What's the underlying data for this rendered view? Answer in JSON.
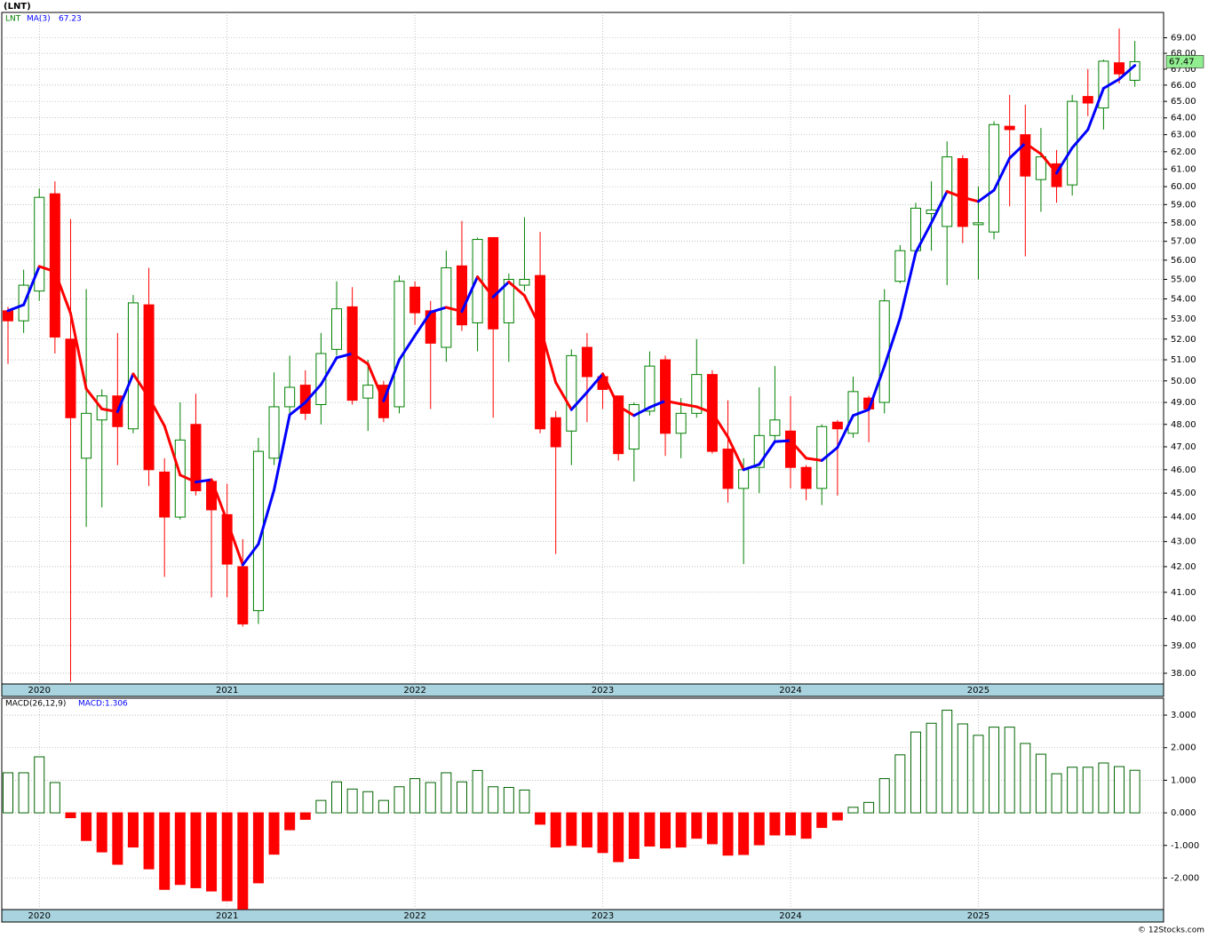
{
  "chart_data": [
    {
      "type": "candlestick",
      "title": "(LNT)",
      "log_scale": true,
      "grid": true,
      "categories": [
        null,
        null,
        "2020",
        null,
        null,
        null,
        null,
        null,
        null,
        null,
        null,
        null,
        null,
        null,
        "2021",
        null,
        null,
        null,
        null,
        null,
        null,
        null,
        null,
        null,
        null,
        null,
        "2022",
        null,
        null,
        null,
        null,
        null,
        null,
        null,
        null,
        null,
        null,
        null,
        "2023",
        null,
        null,
        null,
        null,
        null,
        null,
        null,
        null,
        null,
        null,
        null,
        "2024",
        null,
        null,
        null,
        null,
        null,
        null,
        null,
        null,
        null,
        null,
        null,
        "2025",
        null,
        null,
        null,
        null,
        null,
        null,
        null,
        null,
        null,
        null
      ],
      "series": [
        {
          "name": "LNT",
          "color": "#008000",
          "down_color": "#ff0000",
          "open": [
            53.4,
            52.9,
            54.4,
            59.6,
            52.0,
            46.5,
            48.2,
            49.3,
            47.8,
            53.7,
            45.9,
            44.0,
            48.0,
            45.5,
            44.1,
            42.0,
            40.3,
            46.5,
            48.8,
            49.8,
            48.9,
            51.5,
            53.6,
            49.2,
            49.8,
            48.8,
            54.6,
            53.4,
            51.6,
            55.7,
            52.8,
            57.2,
            52.8,
            54.7,
            55.2,
            48.3,
            47.7,
            51.6,
            50.2,
            49.3,
            46.9,
            48.6,
            51.0,
            47.6,
            48.5,
            50.3,
            46.9,
            45.2,
            46.1,
            47.5,
            47.7,
            46.1,
            45.2,
            48.1,
            47.6,
            49.2,
            49.0,
            54.9,
            56.5,
            58.5,
            57.8,
            61.6,
            57.9,
            57.5,
            63.5,
            63.0,
            60.4,
            61.3,
            60.1,
            65.3,
            64.6,
            67.4,
            66.3
          ],
          "high": [
            53.6,
            55.5,
            59.9,
            60.3,
            58.2,
            54.5,
            49.6,
            52.3,
            54.2,
            55.6,
            46.5,
            49.0,
            49.4,
            45.6,
            45.4,
            43.1,
            47.4,
            50.4,
            51.2,
            50.5,
            52.3,
            54.9,
            54.6,
            51.0,
            50.0,
            55.2,
            54.9,
            53.9,
            56.5,
            58.1,
            57.2,
            57.2,
            55.3,
            58.3,
            57.5,
            48.6,
            51.5,
            52.3,
            50.4,
            49.3,
            49.0,
            51.4,
            51.2,
            49.2,
            52.0,
            50.5,
            49.1,
            46.5,
            49.7,
            50.7,
            49.3,
            46.2,
            48.0,
            48.2,
            50.2,
            49.3,
            54.5,
            56.8,
            59.1,
            60.3,
            62.6,
            61.8,
            60.0,
            63.8,
            65.4,
            64.8,
            63.4,
            62.1,
            65.4,
            67.0,
            67.6,
            69.6,
            68.8
          ],
          "low": [
            50.8,
            52.3,
            53.9,
            51.3,
            37.7,
            43.6,
            44.4,
            46.2,
            47.6,
            45.3,
            41.6,
            43.9,
            44.9,
            40.8,
            40.8,
            39.7,
            39.8,
            46.2,
            48.3,
            48.2,
            48.0,
            51.2,
            48.9,
            47.7,
            48.1,
            48.5,
            52.7,
            48.7,
            50.9,
            52.4,
            51.4,
            48.3,
            50.9,
            54.4,
            47.6,
            42.5,
            46.2,
            48.1,
            48.7,
            46.4,
            45.5,
            48.4,
            46.6,
            46.5,
            48.3,
            46.7,
            44.6,
            42.1,
            45.0,
            47.2,
            45.2,
            44.7,
            44.5,
            44.9,
            47.4,
            47.2,
            48.5,
            54.8,
            56.3,
            56.5,
            54.7,
            56.9,
            55.0,
            57.1,
            58.9,
            56.2,
            58.6,
            59.1,
            59.5,
            64.1,
            63.3,
            66.1,
            65.9
          ],
          "close": [
            52.9,
            54.7,
            59.4,
            52.1,
            48.3,
            48.5,
            49.3,
            47.9,
            53.8,
            46.0,
            44.0,
            47.3,
            45.1,
            44.3,
            42.1,
            39.8,
            46.8,
            48.8,
            49.7,
            48.5,
            51.3,
            53.5,
            49.1,
            49.8,
            48.3,
            54.9,
            53.3,
            51.8,
            55.6,
            52.7,
            57.1,
            52.5,
            55.0,
            55.0,
            47.8,
            47.0,
            51.2,
            50.2,
            49.6,
            46.7,
            48.9,
            50.7,
            47.6,
            48.5,
            50.3,
            46.8,
            45.2,
            46.0,
            47.5,
            48.2,
            46.1,
            45.2,
            47.9,
            47.8,
            49.5,
            48.7,
            53.9,
            56.5,
            58.8,
            58.7,
            61.7,
            57.8,
            58.0,
            63.6,
            63.3,
            60.6,
            61.7,
            60.0,
            65.0,
            64.9,
            67.5,
            66.7,
            67.47
          ]
        },
        {
          "name": "MA(3)",
          "color": "#0000ff",
          "down_color": "#ff0000",
          "values": [
            53.4,
            53.7,
            55.67,
            55.4,
            53.27,
            49.63,
            48.7,
            48.57,
            50.33,
            49.23,
            47.93,
            45.77,
            45.47,
            45.57,
            43.83,
            42.07,
            42.9,
            45.13,
            48.43,
            49,
            49.83,
            51.1,
            51.3,
            50.8,
            49.07,
            51,
            52.17,
            53.33,
            53.57,
            53.37,
            55.13,
            54.1,
            54.87,
            54.17,
            52.6,
            49.93,
            48.67,
            49.47,
            50.33,
            48.83,
            48.4,
            48.77,
            49.07,
            48.93,
            48.8,
            48.53,
            47.43,
            46,
            46.23,
            47.23,
            47.27,
            46.5,
            46.4,
            46.97,
            48.4,
            48.67,
            50.7,
            53.03,
            56.4,
            58,
            59.73,
            59.4,
            59.17,
            59.8,
            61.63,
            62.5,
            61.87,
            60.77,
            62.23,
            63.3,
            65.8,
            66.37,
            67.23
          ]
        }
      ],
      "ylim": [
        37.62,
        70.66
      ],
      "yticks": [
        {
          "value": 38,
          "label": "38.00"
        },
        {
          "value": 39,
          "label": "39.00"
        },
        {
          "value": 40,
          "label": "40.00"
        },
        {
          "value": 41,
          "label": "41.00"
        },
        {
          "value": 42,
          "label": "42.00"
        },
        {
          "value": 43,
          "label": "43.00"
        },
        {
          "value": 44,
          "label": "44.00"
        },
        {
          "value": 45,
          "label": "45.00"
        },
        {
          "value": 46,
          "label": "46.00"
        },
        {
          "value": 47,
          "label": "47.00"
        },
        {
          "value": 48,
          "label": "48.00"
        },
        {
          "value": 49,
          "label": "49.00"
        },
        {
          "value": 50,
          "label": "50.00"
        },
        {
          "value": 51,
          "label": "51.00"
        },
        {
          "value": 52,
          "label": "52.00"
        },
        {
          "value": 53,
          "label": "53.00"
        },
        {
          "value": 54,
          "label": "54.00"
        },
        {
          "value": 55,
          "label": "55.00"
        },
        {
          "value": 56,
          "label": "56.00"
        },
        {
          "value": 57,
          "label": "57.00"
        },
        {
          "value": 58,
          "label": "58.00"
        },
        {
          "value": 59,
          "label": "59.00"
        },
        {
          "value": 60,
          "label": "60.00"
        },
        {
          "value": 61,
          "label": "61.00"
        },
        {
          "value": 62,
          "label": "62.00"
        },
        {
          "value": 63,
          "label": "63.00"
        },
        {
          "value": 64,
          "label": "64.00"
        },
        {
          "value": 65,
          "label": "65.00"
        },
        {
          "value": 66,
          "label": "66.00"
        },
        {
          "value": 67,
          "label": "67.00"
        },
        {
          "value": 68,
          "label": "68.00"
        },
        {
          "value": 69,
          "label": "69.00"
        }
      ]
    },
    {
      "type": "bar",
      "grid": true,
      "readout": "MACD:1.306",
      "series": [
        {
          "name": "MACD(26,12,9)",
          "color": "#006400",
          "down_color": "#ff0000",
          "values": [
            1.23,
            1.23,
            1.72,
            0.93,
            -0.15,
            -0.85,
            -1.2,
            -1.58,
            -1.05,
            -1.72,
            -2.35,
            -2.2,
            -2.3,
            -2.4,
            -2.7,
            -2.95,
            -2.15,
            -1.27,
            -0.52,
            -0.2,
            0.38,
            0.95,
            0.73,
            0.65,
            0.38,
            0.8,
            1.05,
            0.93,
            1.23,
            0.95,
            1.3,
            0.8,
            0.78,
            0.7,
            -0.35,
            -1.05,
            -1.0,
            -1.05,
            -1.22,
            -1.5,
            -1.4,
            -1.02,
            -1.08,
            -1.05,
            -0.78,
            -0.95,
            -1.3,
            -1.28,
            -0.98,
            -0.68,
            -0.68,
            -0.78,
            -0.45,
            -0.22,
            0.17,
            0.32,
            1.05,
            1.78,
            2.48,
            2.75,
            3.15,
            2.73,
            2.38,
            2.63,
            2.63,
            2.13,
            1.8,
            1.2,
            1.4,
            1.4,
            1.53,
            1.42,
            1.306
          ]
        }
      ],
      "ylim": [
        -2.97,
        3.52
      ],
      "yticks": [
        {
          "value": 3,
          "label": "3.000"
        },
        {
          "value": 2,
          "label": "2.000"
        },
        {
          "value": 1,
          "label": "1.000"
        },
        {
          "value": 0,
          "label": "0.000"
        },
        {
          "value": -1,
          "label": "-1.000"
        },
        {
          "value": -2,
          "label": "-2.000"
        }
      ]
    }
  ],
  "footer": "© 12Stocks.com"
}
